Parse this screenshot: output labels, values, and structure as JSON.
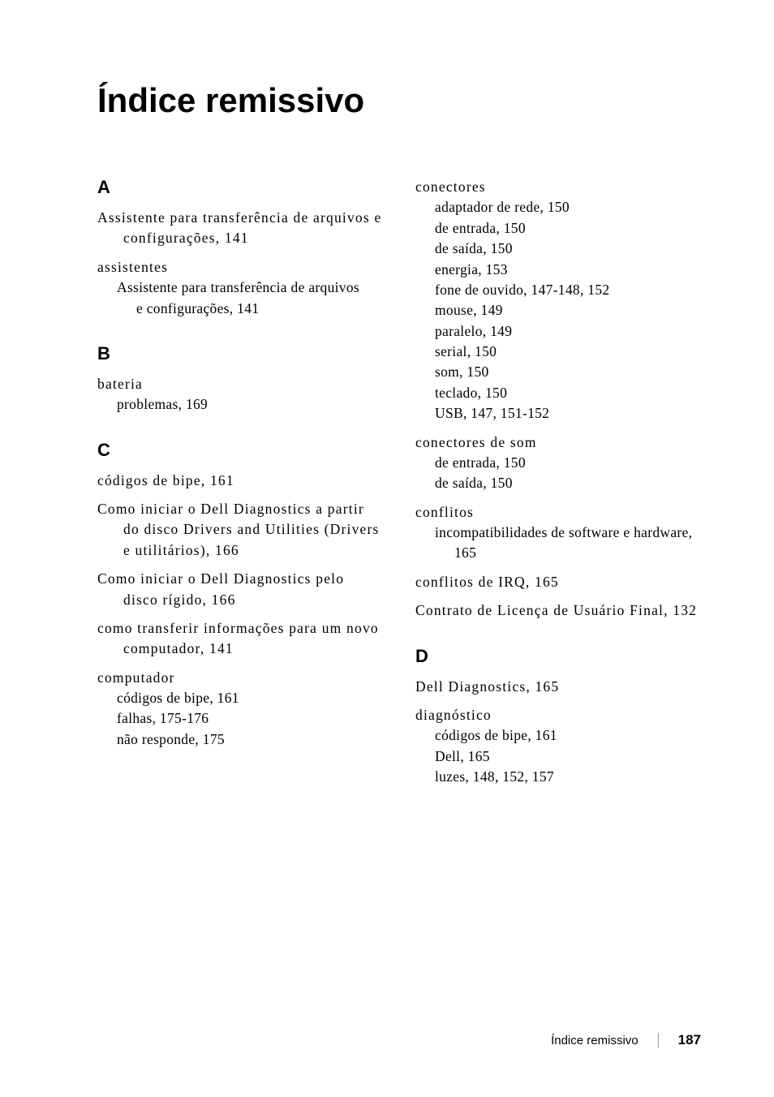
{
  "title": "Índice remissivo",
  "columns": {
    "left": {
      "sections": [
        {
          "letter": "A",
          "entries": [
            {
              "text": "Assistente para transferência de arquivos e configurações, 141",
              "spaced": true
            },
            {
              "text": "assistentes",
              "spaced": true,
              "subs": [
                {
                  "text": "Assistente para transferência de arquivos",
                  "subs": [
                    {
                      "text": "e configurações, 141"
                    }
                  ]
                }
              ]
            }
          ]
        },
        {
          "letter": "B",
          "entries": [
            {
              "text": "bateria",
              "spaced": true,
              "subs": [
                {
                  "text": "problemas, 169"
                }
              ]
            }
          ]
        },
        {
          "letter": "C",
          "entries": [
            {
              "text": "códigos de bipe, 161",
              "spaced": true
            },
            {
              "text": "Como iniciar o Dell Diagnostics a partir do disco Drivers and Utilities (Drivers e utilitários), 166",
              "spaced": true
            },
            {
              "text": "Como iniciar o Dell Diagnostics pelo disco rígido, 166",
              "spaced": true
            },
            {
              "text": "como transferir informações para um novo computador, 141",
              "spaced": true
            },
            {
              "text": "computador",
              "spaced": true,
              "subs": [
                {
                  "text": "códigos de bipe, 161"
                },
                {
                  "text": "falhas, 175-176"
                },
                {
                  "text": "não responde, 175"
                }
              ]
            }
          ]
        }
      ]
    },
    "right": {
      "sections": [
        {
          "letter": "",
          "entries": [
            {
              "text": "conectores",
              "spaced": true,
              "subs": [
                {
                  "text": "adaptador de rede, 150"
                },
                {
                  "text": "de entrada, 150"
                },
                {
                  "text": "de saída, 150"
                },
                {
                  "text": "energia, 153"
                },
                {
                  "text": "fone de ouvido, 147-148, 152"
                },
                {
                  "text": "mouse, 149"
                },
                {
                  "text": "paralelo, 149"
                },
                {
                  "text": "serial, 150"
                },
                {
                  "text": "som, 150"
                },
                {
                  "text": "teclado, 150"
                },
                {
                  "text": "USB, 147, 151-152"
                }
              ]
            },
            {
              "text": "conectores de som",
              "spaced": true,
              "subs": [
                {
                  "text": "de entrada, 150"
                },
                {
                  "text": "de saída, 150"
                }
              ]
            },
            {
              "text": "conflitos",
              "spaced": true,
              "subs": [
                {
                  "text": "incompatibilidades de software e hardware, 165"
                }
              ]
            },
            {
              "text": "conflitos de IRQ, 165",
              "spaced": true
            },
            {
              "text": "Contrato de Licença de Usuário Final, 132",
              "spaced": true
            }
          ]
        },
        {
          "letter": "D",
          "entries": [
            {
              "text": "Dell Diagnostics, 165",
              "spaced": true
            },
            {
              "text": "diagnóstico",
              "spaced": true,
              "subs": [
                {
                  "text": "códigos de bipe, 161"
                },
                {
                  "text": "Dell, 165"
                },
                {
                  "text": "luzes, 148, 152, 157"
                }
              ]
            }
          ]
        }
      ]
    }
  },
  "footer": {
    "text": "Índice remissivo",
    "page": "187"
  }
}
